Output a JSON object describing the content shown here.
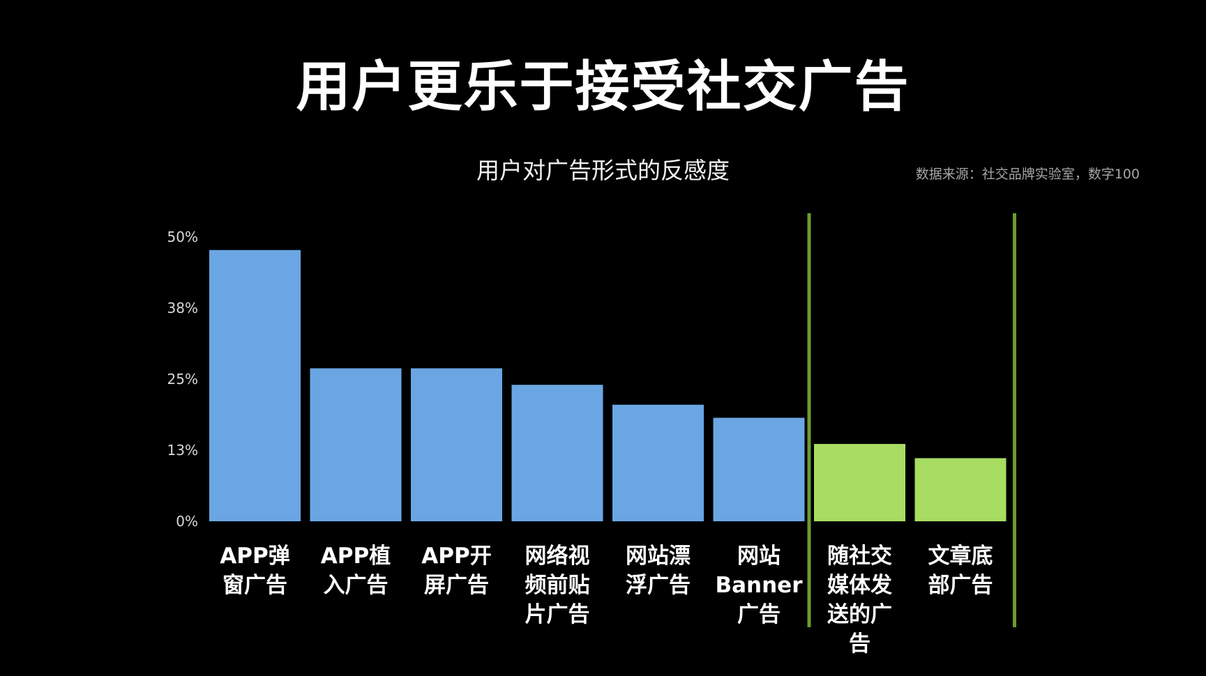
{
  "slide": {
    "title": "用户更乐于接受社交广告"
  },
  "source_note": "数据来源：社交品牌实验室，数字100",
  "colors": {
    "background": "#000000",
    "blue_bar": "#6aa6e3",
    "green_bar": "#a8dc62",
    "highlight_line": "#6e9a2e"
  },
  "chart_data": {
    "type": "bar",
    "title": "用户对广告形式的反感度",
    "xlabel": "",
    "ylabel": "",
    "ylim": [
      0,
      50
    ],
    "yticks": [
      "0%",
      "13%",
      "25%",
      "38%",
      "50%"
    ],
    "ytick_values": [
      0,
      12.5,
      25,
      37.5,
      50
    ],
    "grid": false,
    "legend": "none",
    "categories": [
      [
        "APP弹",
        "窗广告"
      ],
      [
        "APP植",
        "入广告"
      ],
      [
        "APP开",
        "屏广告"
      ],
      [
        "网络视",
        "频前贴",
        "片广告"
      ],
      [
        "网站漂",
        "浮广告"
      ],
      [
        "网站",
        "Banner",
        "广告"
      ],
      [
        "随社交",
        "媒体发",
        "送的广",
        "告"
      ],
      [
        "文章底",
        "部广告"
      ]
    ],
    "values": [
      47.7,
      26.9,
      26.9,
      24.0,
      20.5,
      18.2,
      13.6,
      11.1
    ],
    "bar_colors": [
      "blue",
      "blue",
      "blue",
      "blue",
      "blue",
      "blue",
      "green",
      "green"
    ],
    "highlight_bracket": {
      "from_category": 6,
      "to_category": 7
    }
  }
}
